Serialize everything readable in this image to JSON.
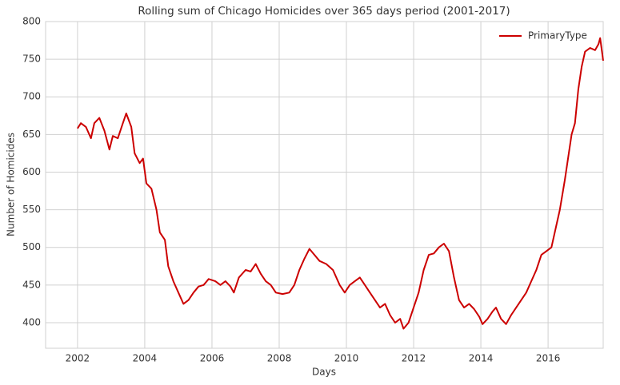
{
  "chart_data": {
    "type": "line",
    "title": "Rolling sum of Chicago Homicides over 365 days period (2001-2017)",
    "x_label": "Days",
    "y_label": "Number of Homicides",
    "x": [
      2002.0,
      2002.1,
      2002.25,
      2002.4,
      2002.5,
      2002.65,
      2002.8,
      2002.95,
      2003.05,
      2003.2,
      2003.35,
      2003.45,
      2003.6,
      2003.7,
      2003.85,
      2003.95,
      2004.05,
      2004.2,
      2004.35,
      2004.45,
      2004.6,
      2004.7,
      2004.85,
      2005.0,
      2005.15,
      2005.3,
      2005.45,
      2005.6,
      2005.75,
      2005.9,
      2006.1,
      2006.25,
      2006.4,
      2006.55,
      2006.65,
      2006.8,
      2007.0,
      2007.15,
      2007.3,
      2007.45,
      2007.6,
      2007.75,
      2007.9,
      2008.1,
      2008.3,
      2008.45,
      2008.6,
      2008.75,
      2008.9,
      2009.05,
      2009.2,
      2009.4,
      2009.6,
      2009.8,
      2009.95,
      2010.1,
      2010.25,
      2010.4,
      2010.55,
      2010.7,
      2010.85,
      2011.0,
      2011.15,
      2011.3,
      2011.45,
      2011.6,
      2011.7,
      2011.85,
      2012.0,
      2012.15,
      2012.3,
      2012.45,
      2012.6,
      2012.75,
      2012.9,
      2013.05,
      2013.2,
      2013.35,
      2013.5,
      2013.65,
      2013.8,
      2013.95,
      2014.05,
      2014.2,
      2014.35,
      2014.45,
      2014.6,
      2014.75,
      2014.9,
      2015.05,
      2015.2,
      2015.35,
      2015.5,
      2015.65,
      2015.8,
      2015.95,
      2016.1,
      2016.25,
      2016.35,
      2016.5,
      2016.6,
      2016.7,
      2016.8,
      2016.9,
      2017.0,
      2017.1,
      2017.25,
      2017.4,
      2017.5,
      2017.55,
      2017.64
    ],
    "series": [
      {
        "name": "PrimaryType",
        "color": "#cc0000",
        "values": [
          658,
          665,
          660,
          645,
          665,
          672,
          655,
          630,
          648,
          645,
          665,
          678,
          660,
          625,
          612,
          618,
          585,
          578,
          550,
          520,
          510,
          475,
          455,
          440,
          425,
          430,
          440,
          448,
          450,
          458,
          455,
          450,
          455,
          448,
          440,
          460,
          470,
          468,
          478,
          465,
          455,
          450,
          440,
          438,
          440,
          450,
          470,
          485,
          498,
          490,
          482,
          478,
          470,
          450,
          440,
          450,
          455,
          460,
          450,
          440,
          430,
          420,
          425,
          410,
          400,
          405,
          392,
          400,
          420,
          440,
          470,
          490,
          492,
          500,
          505,
          495,
          460,
          430,
          420,
          425,
          418,
          408,
          398,
          405,
          415,
          420,
          405,
          398,
          410,
          420,
          430,
          440,
          455,
          470,
          490,
          495,
          500,
          530,
          550,
          590,
          620,
          650,
          665,
          710,
          740,
          760,
          765,
          762,
          770,
          778,
          748
        ]
      }
    ],
    "xlim": [
      2001.05,
      2017.64
    ],
    "xticks": [
      2002,
      2004,
      2006,
      2008,
      2010,
      2012,
      2014,
      2016
    ],
    "ylim": [
      366,
      800
    ],
    "yticks": [
      400,
      450,
      500,
      550,
      600,
      650,
      700,
      750,
      800
    ],
    "grid": true,
    "legend": "upper right"
  }
}
